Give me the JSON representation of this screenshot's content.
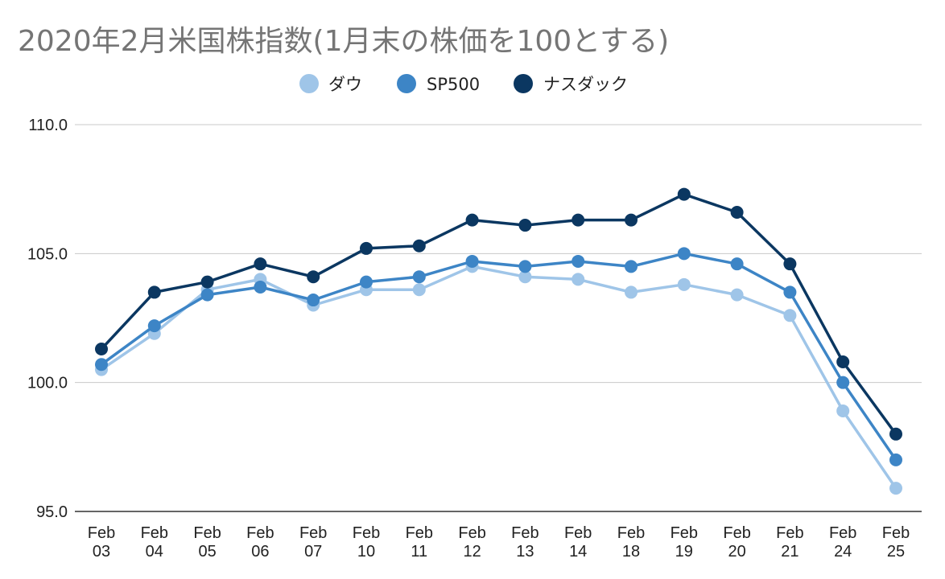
{
  "chart_data": {
    "type": "line",
    "title": "2020年2月米国株指数(1月末の株価を100とする)",
    "xlabel": "",
    "ylabel": "",
    "categories": [
      [
        "Feb",
        "03"
      ],
      [
        "Feb",
        "04"
      ],
      [
        "Feb",
        "05"
      ],
      [
        "Feb",
        "06"
      ],
      [
        "Feb",
        "07"
      ],
      [
        "Feb",
        "10"
      ],
      [
        "Feb",
        "11"
      ],
      [
        "Feb",
        "12"
      ],
      [
        "Feb",
        "13"
      ],
      [
        "Feb",
        "14"
      ],
      [
        "Feb",
        "18"
      ],
      [
        "Feb",
        "19"
      ],
      [
        "Feb",
        "20"
      ],
      [
        "Feb",
        "21"
      ],
      [
        "Feb",
        "24"
      ],
      [
        "Feb",
        "25"
      ]
    ],
    "ylim": [
      95,
      110
    ],
    "yticks": [
      "95.0",
      "100.0",
      "105.0",
      "110.0"
    ],
    "grid": true,
    "legend_position": "top-center",
    "series": [
      {
        "name": "ダウ",
        "color": "#9fc5e8",
        "values": [
          100.5,
          101.9,
          103.6,
          104.0,
          103.0,
          103.6,
          103.6,
          104.5,
          104.1,
          104.0,
          103.5,
          103.8,
          103.4,
          102.6,
          98.9,
          95.9
        ]
      },
      {
        "name": "SP500",
        "color": "#3d85c6",
        "values": [
          100.7,
          102.2,
          103.4,
          103.7,
          103.2,
          103.9,
          104.1,
          104.7,
          104.5,
          104.7,
          104.5,
          105.0,
          104.6,
          103.5,
          100.0,
          97.0
        ]
      },
      {
        "name": "ナスダック",
        "color": "#0b3761",
        "values": [
          101.3,
          103.5,
          103.9,
          104.6,
          104.1,
          105.2,
          105.3,
          106.3,
          106.1,
          106.3,
          106.3,
          107.3,
          106.6,
          104.6,
          100.8,
          98.0
        ]
      }
    ]
  }
}
